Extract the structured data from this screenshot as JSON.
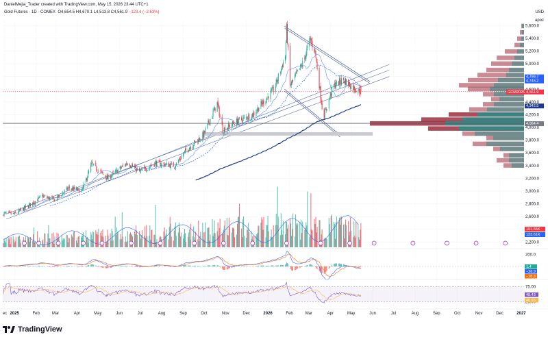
{
  "header": {
    "line1": "DanielMejia_Trader created with TradingView.com, May 15, 2026 23:44 UTC+1",
    "symbol": "Gold Futures · 1D · COMEX",
    "open": "O4,654.5",
    "high": "H4,670.1",
    "low": "L4,513.8",
    "close": "C4,561.9",
    "change": "−123.4 (−2.63%)"
  },
  "price_axis": {
    "currency": "USD",
    "unit": "apoz",
    "ticks": [
      "5,600.0",
      "5,400.0",
      "5,200.0",
      "5,000.0",
      "4,800.0",
      "4,600.0",
      "4,400.0",
      "4,200.0",
      "4,000.0",
      "3,800.0",
      "3,600.0",
      "3,400.0",
      "3,200.0",
      "3,000.0",
      "2,800.0",
      "2,600.0",
      "2,400.0",
      "2,200.0"
    ]
  },
  "price_labels": [
    {
      "text": "4,799.7",
      "color": "#2962ff",
      "price": 4800
    },
    {
      "text": "4,746.2",
      "color": "#2962ff",
      "price": 4746
    },
    {
      "text": "GCM2026",
      "color": "#f23645",
      "price": 4562
    },
    {
      "text": "4,561.9",
      "color": "#f23645",
      "price": 4562
    },
    {
      "text": "4,342.5",
      "color": "#1e3a8a",
      "price": 4342
    },
    {
      "text": "4,064.4",
      "color": "#787b86",
      "price": 4064
    }
  ],
  "volume_labels": [
    {
      "text": "161.65K",
      "color": "#f23645"
    },
    {
      "text": "123.61K",
      "color": "#2962ff"
    }
  ],
  "macd_axis": {
    "ticks": [
      "200.0",
      "0.0"
    ]
  },
  "macd_labels": [
    {
      "text": "1.4",
      "color": "#22ab94"
    },
    {
      "text": "−26.9",
      "color": "#2962ff"
    },
    {
      "text": "−28.3",
      "color": "#ff6d00"
    }
  ],
  "rsi_axis": {
    "ticks": [
      "75.00",
      "25.00"
    ]
  },
  "rsi_labels": [
    {
      "text": "48.43",
      "color": "#7e57c2"
    },
    {
      "text": "40.55",
      "color": "#ffb74d"
    }
  ],
  "time_axis": [
    "ec",
    "2025",
    "Feb",
    "Mar",
    "Apr",
    "May",
    "Jun",
    "Jul",
    "Aug",
    "Sep",
    "Oct",
    "Nov",
    "Dec",
    "2026",
    "Feb",
    "Mar",
    "Apr",
    "May",
    "Jun",
    "Jul",
    "Aug",
    "Sep",
    "Oct",
    "Nov",
    "Dec",
    "2027"
  ],
  "footer": {
    "brand": "TradingView"
  },
  "chart_data": {
    "type": "candlestick",
    "instrument": "Gold Futures · 1D · COMEX",
    "x_range": [
      "2024-12-15",
      "2026-05-15"
    ],
    "ylim": [
      2150,
      5700
    ],
    "close_path": [
      {
        "date": "2024-12-15",
        "close": 2650
      },
      {
        "date": "2025-01-01",
        "close": 2640
      },
      {
        "date": "2025-01-20",
        "close": 2760
      },
      {
        "date": "2025-02-10",
        "close": 2920
      },
      {
        "date": "2025-02-28",
        "close": 2860
      },
      {
        "date": "2025-03-20",
        "close": 3050
      },
      {
        "date": "2025-04-08",
        "close": 3000
      },
      {
        "date": "2025-04-22",
        "close": 3420
      },
      {
        "date": "2025-05-15",
        "close": 3200
      },
      {
        "date": "2025-06-13",
        "close": 3450
      },
      {
        "date": "2025-06-30",
        "close": 3300
      },
      {
        "date": "2025-07-22",
        "close": 3440
      },
      {
        "date": "2025-08-20",
        "close": 3400
      },
      {
        "date": "2025-09-05",
        "close": 3640
      },
      {
        "date": "2025-09-30",
        "close": 3880
      },
      {
        "date": "2025-10-20",
        "close": 4380
      },
      {
        "date": "2025-10-28",
        "close": 3960
      },
      {
        "date": "2025-11-15",
        "close": 4080
      },
      {
        "date": "2025-12-10",
        "close": 4200
      },
      {
        "date": "2026-01-10",
        "close": 4600
      },
      {
        "date": "2026-01-26",
        "close": 5120
      },
      {
        "date": "2026-01-28",
        "close": 5560
      },
      {
        "date": "2026-02-02",
        "close": 4650
      },
      {
        "date": "2026-02-20",
        "close": 5000
      },
      {
        "date": "2026-03-03",
        "close": 5380
      },
      {
        "date": "2026-03-10",
        "close": 5200
      },
      {
        "date": "2026-03-22",
        "close": 4150
      },
      {
        "date": "2026-04-05",
        "close": 4650
      },
      {
        "date": "2026-04-20",
        "close": 4750
      },
      {
        "date": "2026-05-05",
        "close": 4620
      },
      {
        "date": "2026-05-15",
        "close": 4562
      }
    ],
    "ohlc_last": {
      "open": 4654.5,
      "high": 4670.1,
      "low": 4513.8,
      "close": 4561.9,
      "change": -123.4,
      "change_pct": -2.63
    },
    "moving_averages": [
      {
        "color": "#2962ff",
        "last": 4799.7
      },
      {
        "color": "#2962ff",
        "last": 4746.2
      },
      {
        "color": "#1e3a8a",
        "last": 4342.5
      }
    ],
    "horizontal_line": 4064.4,
    "volume_profile": {
      "point_of_control": 4064.4
    },
    "indicators": {
      "volume": {
        "last_sell": "161.65K",
        "last_buy": "123.61K"
      },
      "macd": {
        "histogram": 1.4,
        "macd": -26.9,
        "signal": -28.3
      },
      "rsi": {
        "rsi": 48.43,
        "ma": 40.55,
        "bands": [
          75,
          25
        ]
      }
    }
  }
}
